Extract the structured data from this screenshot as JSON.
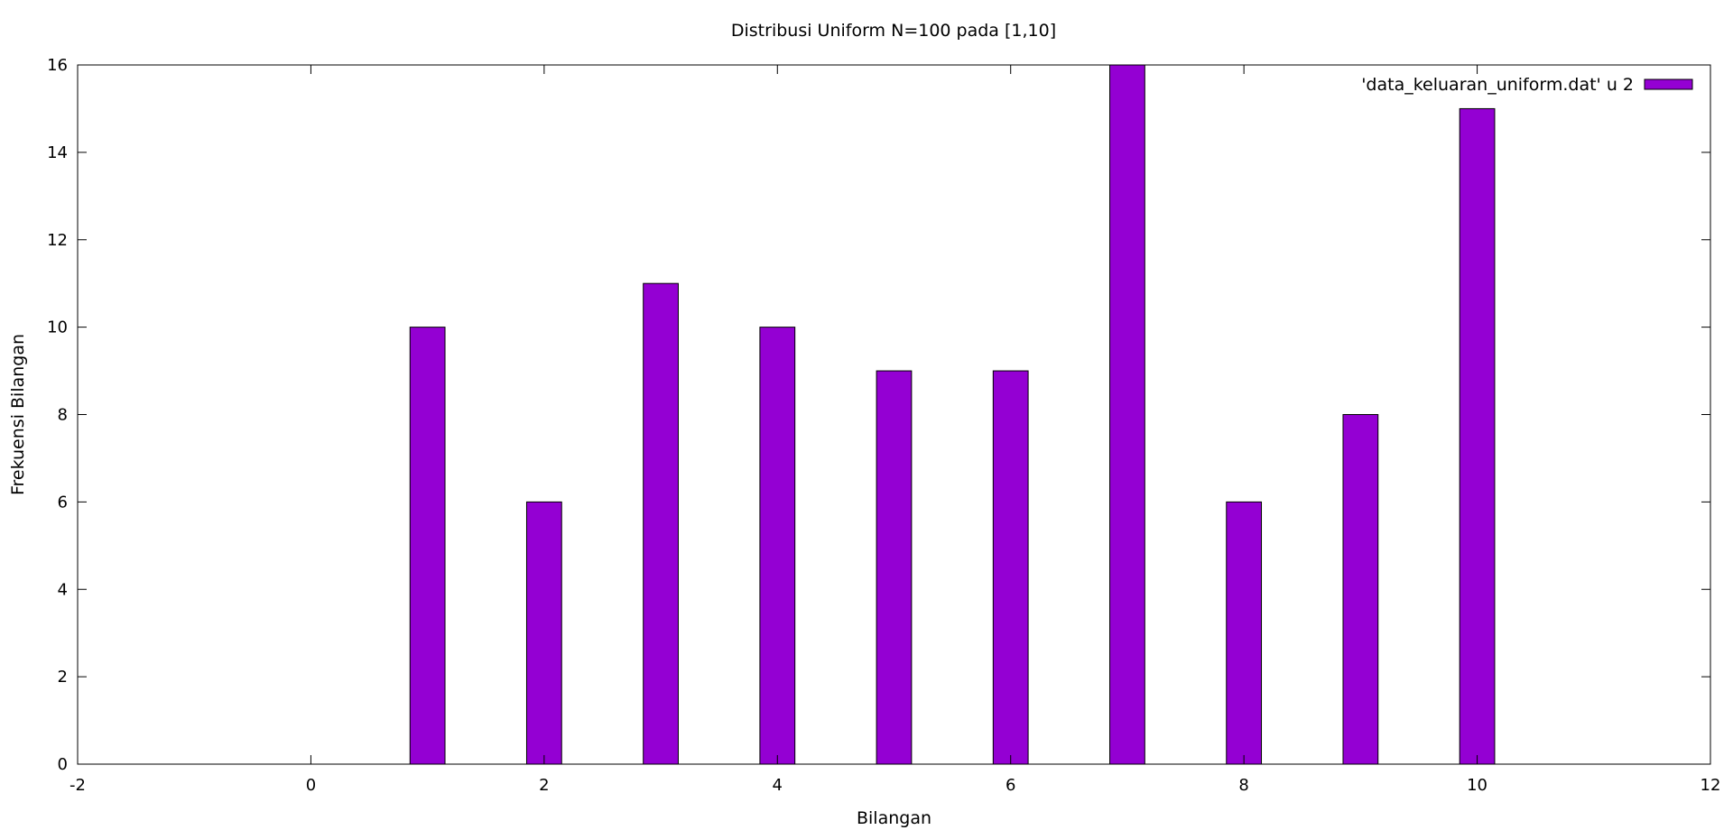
{
  "chart_data": {
    "type": "bar",
    "title": "Distribusi Uniform N=100 pada [1,10]",
    "xlabel": "Bilangan",
    "ylabel": "Frekuensi Bilangan",
    "xlim": [
      -2,
      12
    ],
    "ylim": [
      0,
      16
    ],
    "xticks": [
      -2,
      0,
      2,
      4,
      6,
      8,
      10,
      12
    ],
    "yticks": [
      0,
      2,
      4,
      6,
      8,
      10,
      12,
      14,
      16
    ],
    "bar_width": 0.3,
    "grid": false,
    "legend_position": "top-right",
    "series": [
      {
        "name": "'data_keluaran_uniform.dat' u 2",
        "color": "#9400d3",
        "x": [
          1,
          2,
          3,
          4,
          5,
          6,
          7,
          8,
          9,
          10
        ],
        "values": [
          10,
          6,
          11,
          10,
          9,
          9,
          16,
          6,
          8,
          15
        ]
      }
    ]
  }
}
